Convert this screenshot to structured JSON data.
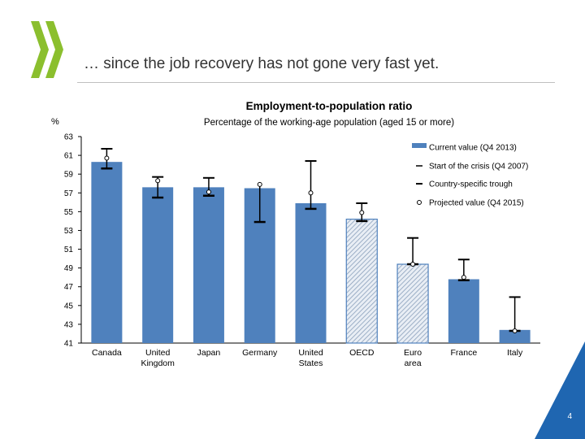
{
  "slide": {
    "title": "… since the job recovery has not gone very fast yet.",
    "page_number": "4"
  },
  "colors": {
    "bar": "#4f81bd",
    "hatch_bg": "#e9eef5",
    "hatch_line": "#8aa0bb",
    "marker": "#000000",
    "corner": "#1f66b1"
  },
  "chart_data": {
    "type": "bar",
    "title": "Employment-to-population ratio",
    "subtitle": "Percentage of the working-age population (aged 15 or more)",
    "ylabel": "%",
    "ylim": [
      41,
      63
    ],
    "yticks": [
      41,
      43,
      45,
      47,
      49,
      51,
      53,
      55,
      57,
      59,
      61,
      63
    ],
    "grid": false,
    "legend_position": "top-right",
    "categories": [
      "Canada",
      "United Kingdom",
      "Japan",
      "Germany",
      "United States",
      "OECD",
      "Euro area",
      "France",
      "Italy"
    ],
    "hatched": [
      false,
      false,
      false,
      false,
      false,
      true,
      true,
      false,
      false
    ],
    "series": [
      {
        "name": "Current value (Q4 2013)",
        "type": "bar",
        "values": [
          60.3,
          57.6,
          57.6,
          57.5,
          55.9,
          54.2,
          49.4,
          47.8,
          42.4
        ]
      },
      {
        "name": "Start of the crisis (Q4 2007)",
        "type": "dash",
        "values": [
          61.7,
          58.7,
          58.6,
          null,
          60.4,
          55.9,
          52.2,
          49.9,
          45.9
        ]
      },
      {
        "name": "Country-specific trough",
        "type": "dash",
        "values": [
          59.6,
          56.5,
          56.7,
          53.9,
          55.3,
          54.0,
          49.4,
          47.7,
          42.3
        ]
      },
      {
        "name": "Projected value (Q4 2015)",
        "type": "circle",
        "values": [
          60.7,
          58.3,
          57.1,
          57.9,
          57.0,
          54.9,
          49.4,
          48.0,
          42.3
        ]
      }
    ]
  }
}
